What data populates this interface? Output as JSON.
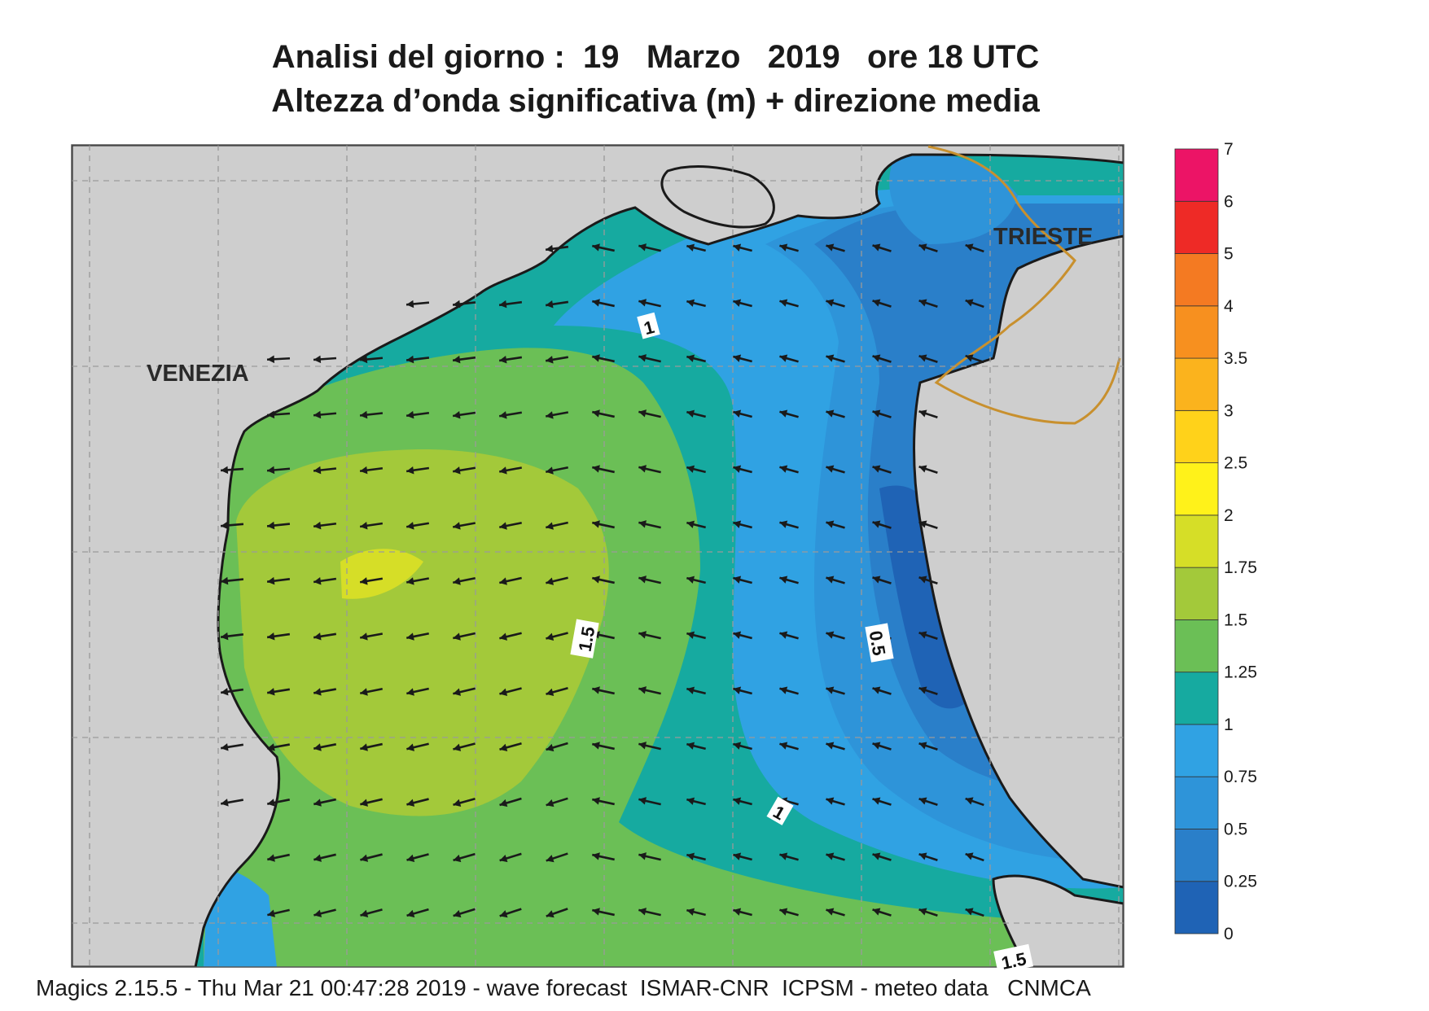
{
  "title": {
    "line1": "Analisi del giorno :  19   Marzo   2019   ore 18 UTC",
    "line2": "Altezza d’onda significativa (m) + direzione media"
  },
  "footer": "Magics 2.15.5 - Thu Mar 21 00:47:28 2019 - wave forecast  ISMAR-CNR  ICPSM - meteo data   CNMCA",
  "cities": [
    {
      "name": "VENEZIA"
    },
    {
      "name": "TRIESTE"
    }
  ],
  "contour_labels": [
    "1",
    "1.5",
    "0.5",
    "1",
    "1.5"
  ],
  "legend": {
    "levels": [
      "0",
      "0.25",
      "0.5",
      "0.75",
      "1",
      "1.25",
      "1.5",
      "1.75",
      "2",
      "2.5",
      "3",
      "3.5",
      "4",
      "5",
      "6",
      "7"
    ],
    "colors": [
      "#1f63b5",
      "#2a7fc9",
      "#2e94d9",
      "#30a2e3",
      "#16aaa0",
      "#6bbf56",
      "#a3c93a",
      "#d6de27",
      "#fff21a",
      "#ffd21a",
      "#fbb31d",
      "#f7901f",
      "#f47a22",
      "#ee2a26",
      "#ec1466"
    ]
  },
  "colors": {
    "land": "#cecece",
    "coast": "#1a1a1a",
    "border": "#c8902e",
    "arrow": "#1a1a1a"
  }
}
